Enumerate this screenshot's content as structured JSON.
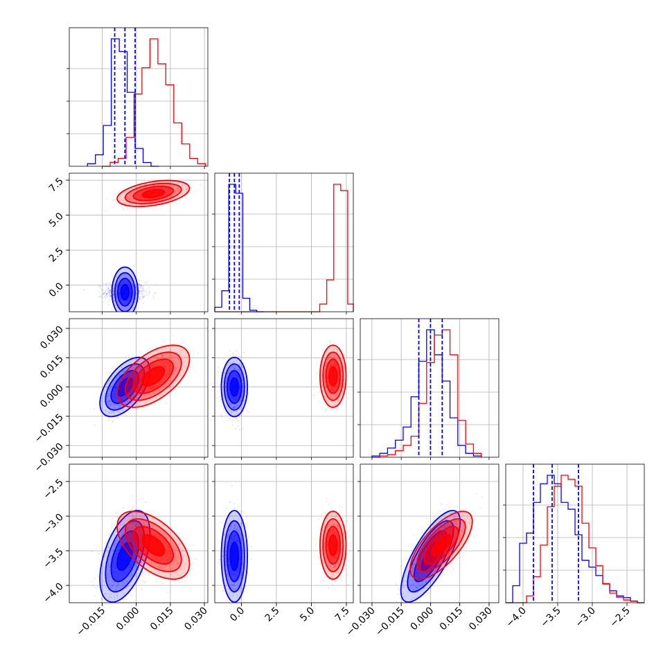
{
  "chart_data": {
    "type": "corner",
    "title": "",
    "params": [
      {
        "ticks": [
          -0.015,
          0.0,
          0.015,
          0.03
        ],
        "tick_labels": [
          "−0.015",
          "0.000",
          "0.015",
          "0.030"
        ],
        "range": [
          -0.0295,
          0.0315
        ]
      },
      {
        "ticks": [
          0.0,
          2.5,
          5.0,
          7.5
        ],
        "tick_labels": [
          "0.0",
          "2.5",
          "5.0",
          "7.5"
        ],
        "range": [
          -1.9,
          8.0
        ]
      },
      {
        "ticks": [
          -0.03,
          -0.015,
          0.0,
          0.015,
          0.03
        ],
        "tick_labels": [
          "−0.030",
          "−0.015",
          "0.000",
          "0.015",
          "0.030"
        ],
        "range": [
          -0.036,
          0.035
        ]
      },
      {
        "ticks": [
          -4.0,
          -3.5,
          -3.0,
          -2.5
        ],
        "tick_labels": [
          "−4.0",
          "−3.5",
          "−3.0",
          "−2.5"
        ],
        "range": [
          -4.25,
          -2.25
        ]
      }
    ],
    "grid": true,
    "series": [
      {
        "color": "#0000ff",
        "mean": [
          -0.005,
          -0.5,
          0.0,
          -3.58
        ],
        "std": [
          0.0045,
          0.38,
          0.0062,
          0.27
        ],
        "corr": {
          "0-2": 0.55,
          "0-3": 0.5,
          "2-3": 0.75
        },
        "quantiles": [
          [
            -0.0095,
            -0.005,
            -0.0005
          ],
          [
            -0.85,
            -0.5,
            -0.15
          ],
          [
            -0.006,
            0.0,
            0.006
          ],
          [
            -3.85,
            -3.58,
            -3.2
          ]
        ],
        "hist": [
          {
            "edges": [
              -0.0215,
              -0.018,
              -0.0145,
              -0.011,
              -0.0075,
              -0.004,
              -0.0005,
              0.003,
              0.0065,
              0.01
            ],
            "counts": [
              0.02,
              0.09,
              0.32,
              1.0,
              0.9,
              0.58,
              0.14,
              0.03,
              0.0
            ]
          },
          {
            "edges": [
              -1.9,
              -1.4,
              -0.9,
              -0.4,
              0.1,
              0.6,
              1.1,
              1.6
            ],
            "counts": [
              0.03,
              0.14,
              0.85,
              0.79,
              0.09,
              0.01,
              0.0
            ]
          },
          {
            "edges": [
              -0.03,
              -0.026,
              -0.022,
              -0.018,
              -0.014,
              -0.01,
              -0.006,
              -0.002,
              0.002,
              0.006,
              0.01,
              0.014,
              0.018,
              0.022,
              0.026
            ],
            "counts": [
              0.01,
              0.03,
              0.07,
              0.13,
              0.23,
              0.46,
              0.73,
              0.97,
              0.78,
              0.58,
              0.3,
              0.09,
              0.03,
              0.01
            ]
          },
          {
            "edges": [
              -4.25,
              -4.15,
              -4.05,
              -3.95,
              -3.85,
              -3.75,
              -3.65,
              -3.55,
              -3.45,
              -3.35,
              -3.25,
              -3.15,
              -3.05,
              -2.95,
              -2.85,
              -2.75,
              -2.65,
              -2.55,
              -2.45,
              -2.35,
              -2.25
            ],
            "counts": [
              0.0,
              0.1,
              0.35,
              0.41,
              0.59,
              0.7,
              0.75,
              0.7,
              0.59,
              0.55,
              0.4,
              0.25,
              0.21,
              0.16,
              0.11,
              0.07,
              0.04,
              0.03,
              0.01,
              0.0
            ]
          }
        ]
      },
      {
        "color": "#ff0000",
        "mean": [
          0.0075,
          6.55,
          0.0055,
          -3.42
        ],
        "std": [
          0.0065,
          0.38,
          0.0065,
          0.2
        ],
        "corr": {
          "0-1": 0.4,
          "0-2": 0.55,
          "0-3": -0.55,
          "2-3": 0.7
        },
        "quantiles": [],
        "hist": [
          {
            "edges": [
              -0.015,
              -0.0115,
              -0.008,
              -0.0045,
              -0.001,
              0.0025,
              0.006,
              0.0095,
              0.013,
              0.0165,
              0.02,
              0.0235,
              0.027,
              0.0305
            ],
            "counts": [
              0.0,
              0.03,
              0.06,
              0.22,
              0.55,
              0.75,
              0.97,
              0.78,
              0.62,
              0.33,
              0.17,
              0.06,
              0.02
            ]
          },
          {
            "edges": [
              -1.9,
              5.6,
              6.1,
              6.6,
              7.1,
              7.6,
              8.0
            ],
            "counts": [
              0.0,
              0.06,
              0.25,
              1.0,
              0.95,
              0.06
            ]
          },
          {
            "edges": [
              -0.03,
              -0.026,
              -0.022,
              -0.018,
              -0.014,
              -0.01,
              -0.006,
              -0.002,
              0.002,
              0.006,
              0.01,
              0.014,
              0.018,
              0.022,
              0.026
            ],
            "counts": [
              0.0,
              0.01,
              0.02,
              0.05,
              0.09,
              0.16,
              0.41,
              0.72,
              0.93,
              0.97,
              0.78,
              0.28,
              0.1,
              0.03
            ]
          },
          {
            "edges": [
              -4.25,
              -4.15,
              -4.05,
              -3.95,
              -3.85,
              -3.75,
              -3.65,
              -3.55,
              -3.45,
              -3.35,
              -3.25,
              -3.15,
              -3.05,
              -2.95,
              -2.85,
              -2.75,
              -2.65,
              -2.55,
              -2.45,
              -2.35,
              -2.25
            ],
            "counts": [
              0.0,
              0.0,
              0.0,
              0.05,
              0.19,
              0.42,
              0.7,
              0.85,
              0.93,
              0.9,
              0.85,
              0.58,
              0.4,
              0.27,
              0.14,
              0.07,
              0.04,
              0.02,
              0.01,
              0.0
            ]
          }
        ]
      }
    ]
  }
}
